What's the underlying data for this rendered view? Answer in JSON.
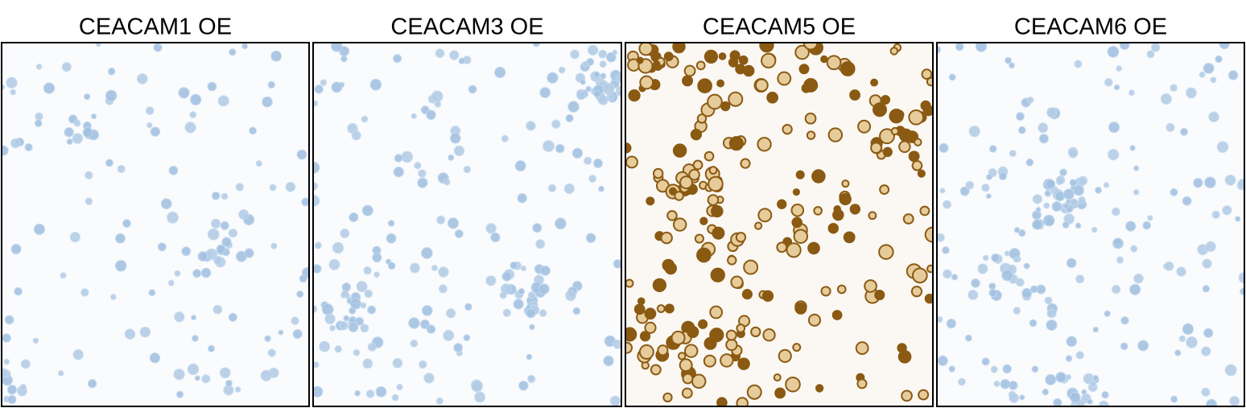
{
  "panels": [
    {
      "title": "CEACAM1 OE"
    },
    {
      "title": "CEACAM3 OE"
    },
    {
      "title": "CEACAM5 OE"
    },
    {
      "title": "CEACAM6 OE"
    }
  ]
}
